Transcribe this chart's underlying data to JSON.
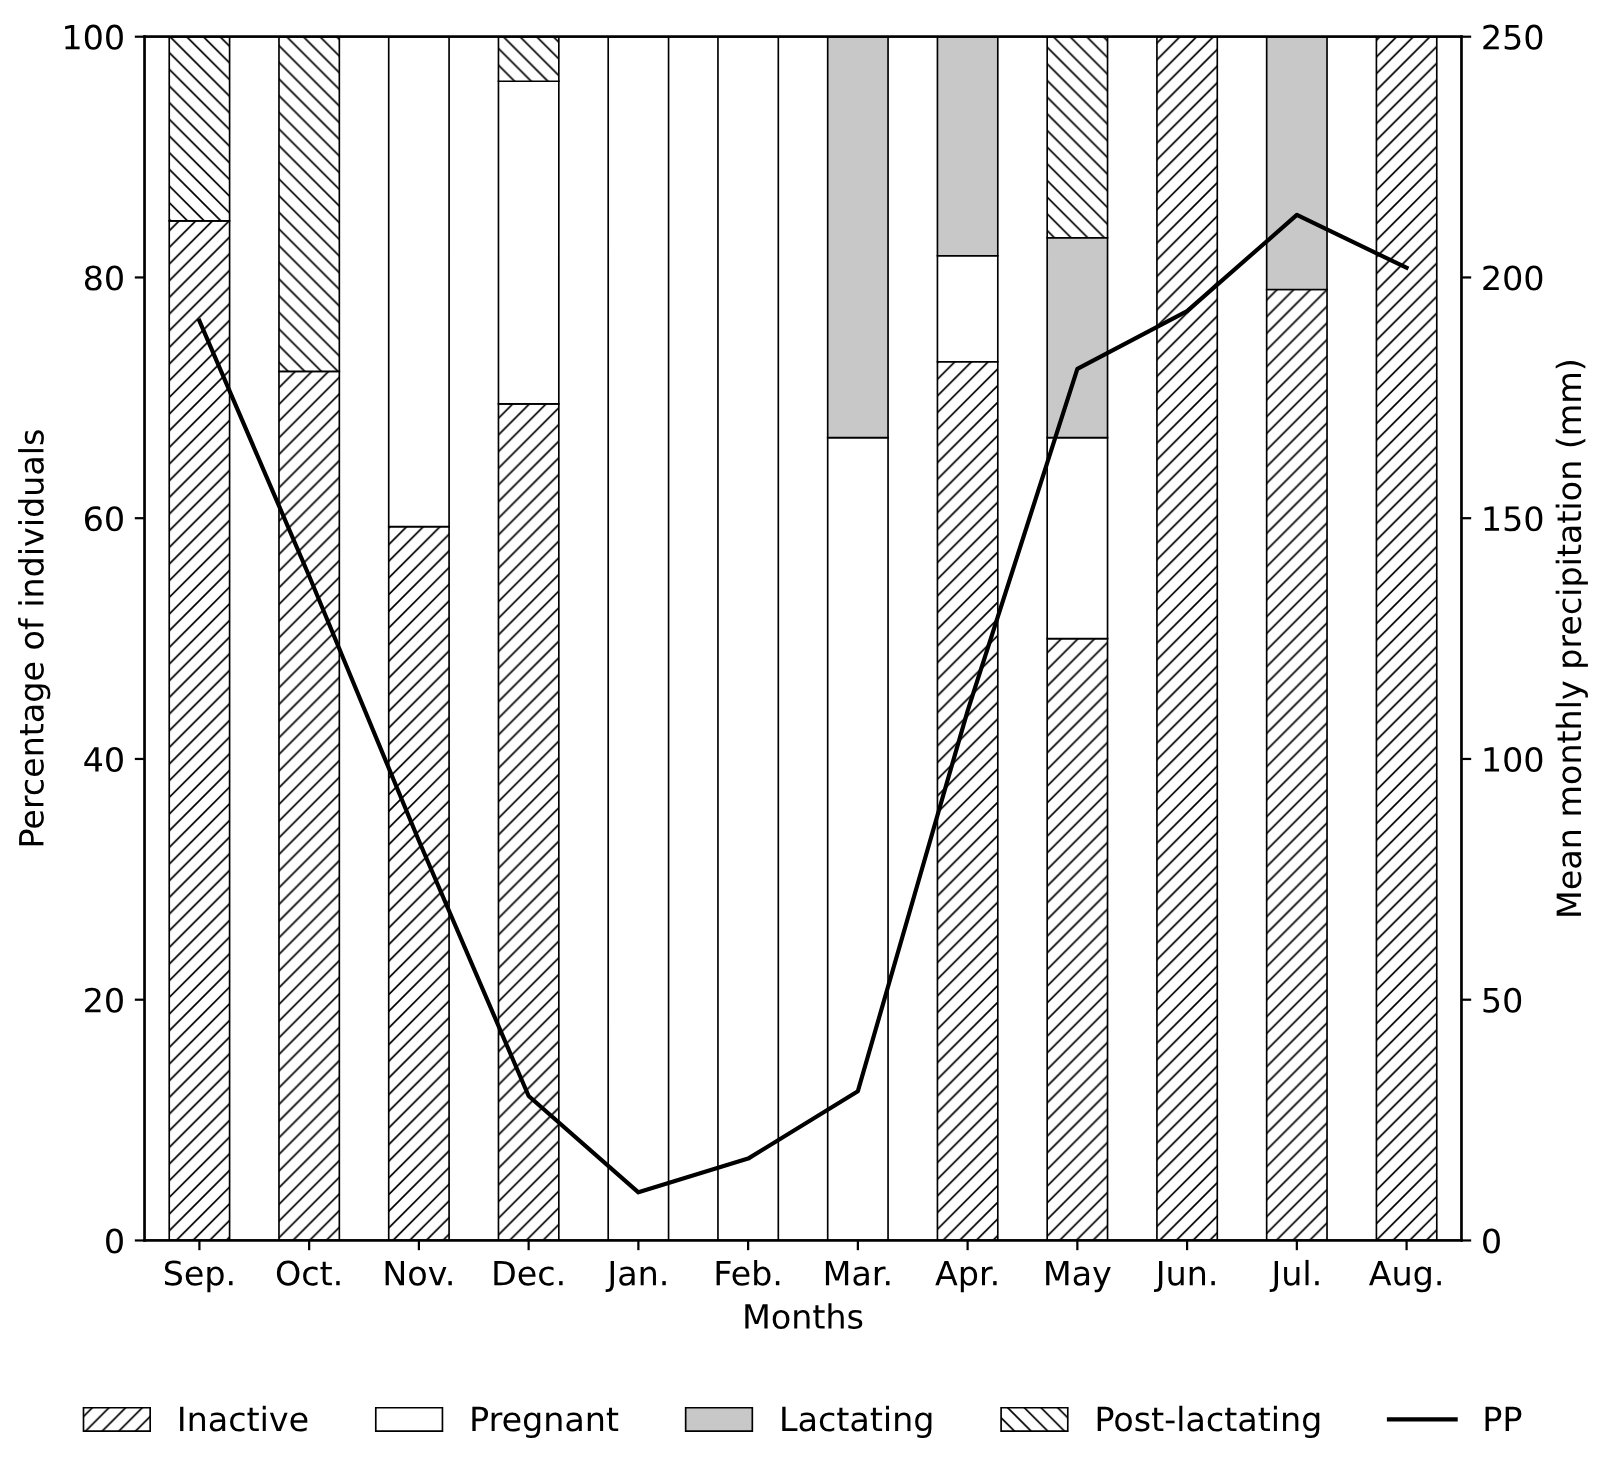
{
  "chart_data": {
    "type": "bar",
    "stacked": true,
    "xlabel": "Months",
    "ylabel": "Percentage of individuals",
    "y2label": "Mean monthly precipitation (mm)",
    "categories": [
      "Sep.",
      "Oct.",
      "Nov.",
      "Dec.",
      "Jan.",
      "Feb.",
      "Mar.",
      "Apr.",
      "May",
      "Jun.",
      "Jul.",
      "Aug."
    ],
    "series": [
      {
        "name": "Inactive",
        "color": "#000000",
        "values": [
          84.7,
          72.2,
          59.3,
          69.5,
          null,
          null,
          null,
          73,
          50,
          100,
          79,
          100
        ]
      },
      {
        "name": "Pregnant",
        "color": "#ffffff",
        "values": [
          null,
          null,
          40.7,
          26.8,
          100,
          100,
          66.7,
          8.8,
          16.7,
          null,
          null,
          null
        ]
      },
      {
        "name": "Lactating",
        "color": "#c8c8c8",
        "values": [
          null,
          null,
          null,
          null,
          null,
          null,
          33.3,
          18.2,
          16.6,
          null,
          21,
          null
        ]
      },
      {
        "name": "Post-lactating",
        "color": "#000000",
        "values": [
          15.3,
          27.8,
          null,
          3.7,
          null,
          null,
          null,
          null,
          16.7,
          null,
          null,
          null
        ]
      },
      {
        "name": "PP",
        "type": "line",
        "axis": "y2",
        "color": "#000000",
        "values": [
          191,
          138,
          83,
          30,
          10,
          17,
          31,
          110,
          181,
          193,
          213,
          202
        ]
      }
    ],
    "ylim": [
      0,
      100
    ],
    "yticks": [
      0,
      20,
      40,
      60,
      80,
      100
    ],
    "y2lim": [
      0,
      250
    ],
    "y2ticks": [
      0,
      50,
      100,
      150,
      200,
      250
    ],
    "grid": false,
    "legend": "bottom",
    "marker": "none",
    "line_style": "solid"
  }
}
